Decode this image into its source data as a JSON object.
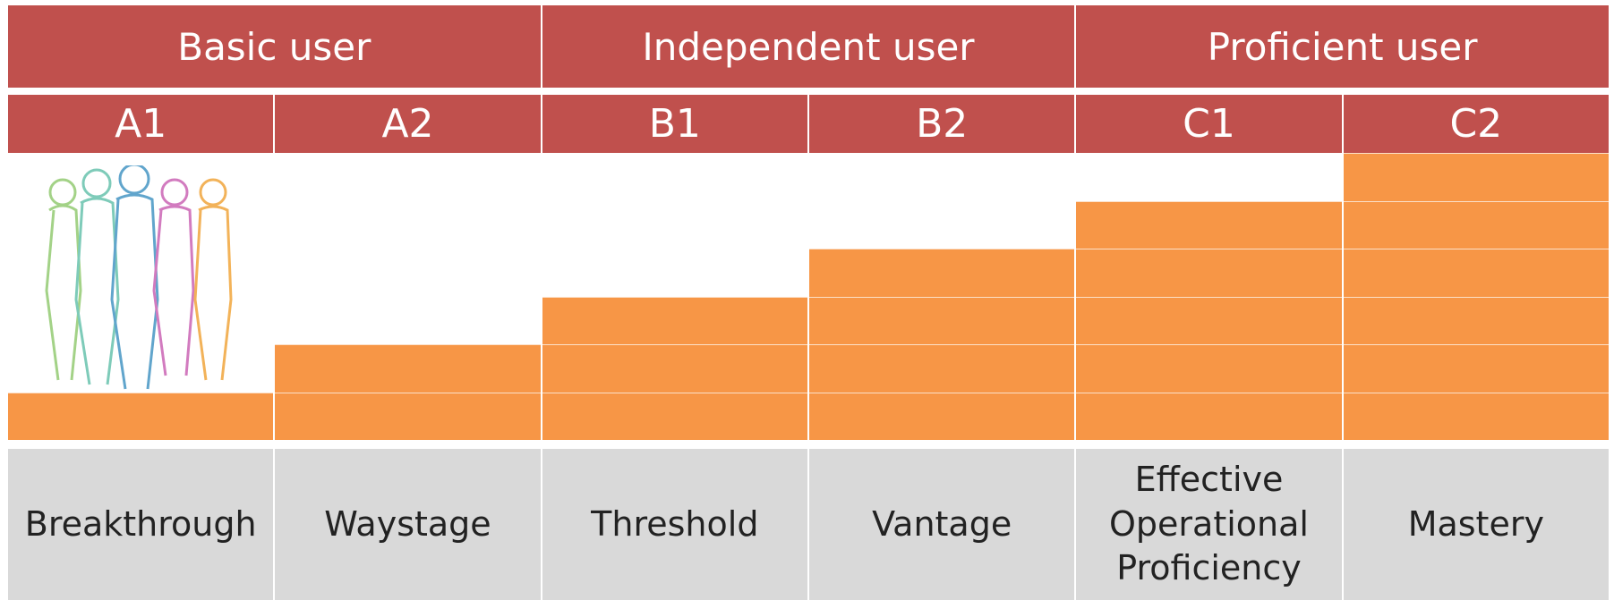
{
  "groups": [
    {
      "label": "Basic user",
      "levels": [
        {
          "code": "A1",
          "name": "Breakthrough"
        },
        {
          "code": "A2",
          "name": "Waystage"
        }
      ]
    },
    {
      "label": "Independent user",
      "levels": [
        {
          "code": "B1",
          "name": "Threshold"
        },
        {
          "code": "B2",
          "name": "Vantage"
        }
      ]
    },
    {
      "label": "Proficient user",
      "levels": [
        {
          "code": "C1",
          "name": "Effective Operational Proficiency"
        },
        {
          "code": "C2",
          "name": "Mastery"
        }
      ]
    }
  ]
}
